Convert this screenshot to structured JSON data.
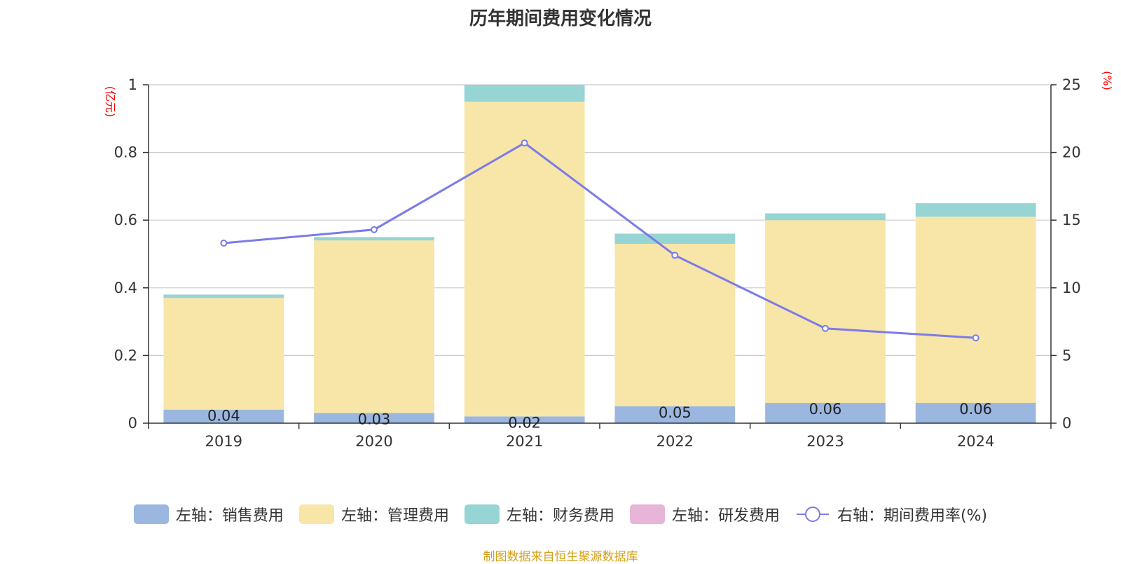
{
  "chart_data": {
    "type": "bar",
    "title": "历年期间费用变化情况",
    "stacked": true,
    "categories": [
      "2019",
      "2020",
      "2021",
      "2022",
      "2023",
      "2024"
    ],
    "left_axis": {
      "unit": "(亿元)",
      "ylim": [
        0,
        1
      ],
      "ticks": [
        "0",
        "0.2",
        "0.4",
        "0.6",
        "0.8",
        "1"
      ]
    },
    "right_axis": {
      "unit": "(%)",
      "ylim": [
        0,
        25
      ],
      "ticks": [
        "0",
        "5",
        "10",
        "15",
        "20",
        "25"
      ]
    },
    "grid": true,
    "legend_position": "bottom",
    "series": [
      {
        "name": "左轴：销售费用",
        "type": "bar",
        "axis": "left",
        "color": "#9bb7e0",
        "values": [
          0.04,
          0.03,
          0.02,
          0.05,
          0.06,
          0.06
        ],
        "labels": [
          "0.04",
          "0.03",
          "0.02",
          "0.05",
          "0.06",
          "0.06"
        ]
      },
      {
        "name": "左轴：管理费用",
        "type": "bar",
        "axis": "left",
        "color": "#f7e6a8",
        "values": [
          0.33,
          0.51,
          0.93,
          0.48,
          0.54,
          0.55
        ]
      },
      {
        "name": "左轴：财务费用",
        "type": "bar",
        "axis": "left",
        "color": "#97d4d4",
        "values": [
          0.01,
          0.01,
          0.05,
          0.03,
          0.02,
          0.04
        ]
      },
      {
        "name": "左轴：研发费用",
        "type": "bar",
        "axis": "left",
        "color": "#e8b4d8",
        "values": [
          0,
          0,
          0,
          0,
          0,
          0
        ]
      },
      {
        "name": "右轴：期间费用率(%)",
        "type": "line",
        "axis": "right",
        "color": "#7b7be8",
        "values": [
          13.3,
          14.3,
          20.7,
          12.4,
          7.0,
          6.3
        ]
      }
    ]
  },
  "source_note": "制图数据来自恒生聚源数据库"
}
